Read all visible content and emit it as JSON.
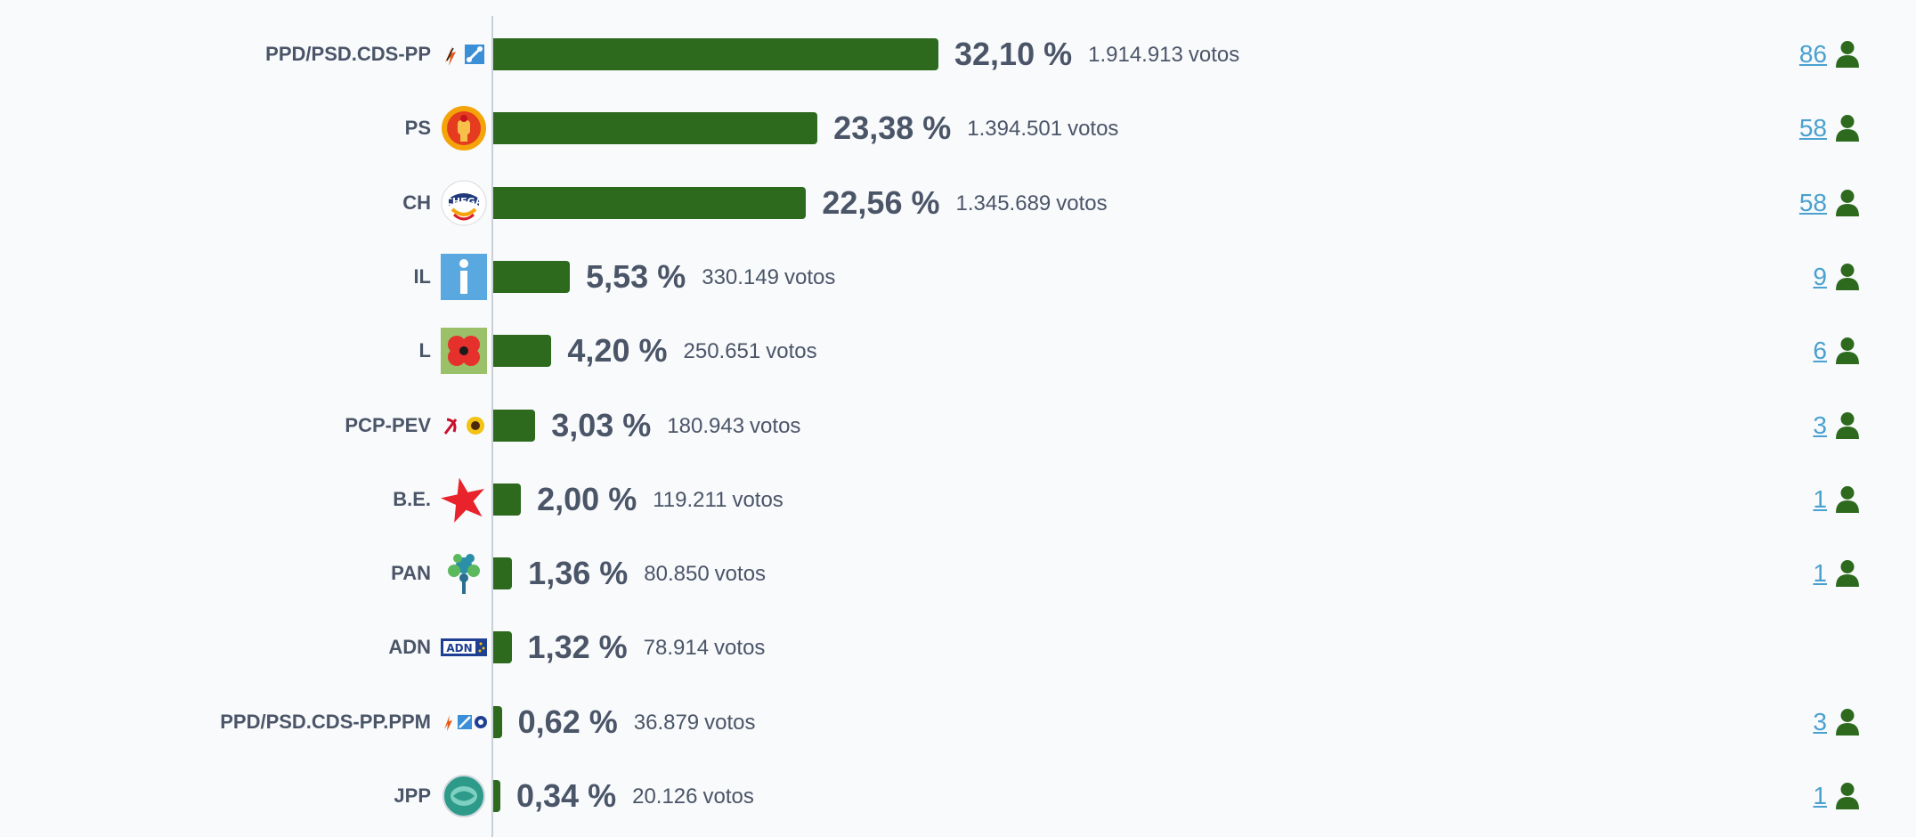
{
  "colors": {
    "bar": "#2d6a1e",
    "text": "#4b5568",
    "link": "#4aa0cf",
    "seat_icon": "#2d6a1e"
  },
  "chart_data": {
    "type": "bar",
    "orientation": "horizontal",
    "value_unit": "%",
    "votes_unit": "votos",
    "xlim": [
      0,
      32.1
    ],
    "categories": [
      "PPD/PSD.CDS-PP",
      "PS",
      "CH",
      "IL",
      "L",
      "PCP-PEV",
      "B.E.",
      "PAN",
      "ADN",
      "PPD/PSD.CDS-PP.PPM",
      "JPP"
    ],
    "values": [
      32.1,
      23.38,
      22.56,
      5.53,
      4.2,
      3.03,
      2.0,
      1.36,
      1.32,
      0.62,
      0.34
    ],
    "values_label": [
      "32,10",
      "23,38",
      "22,56",
      "5,53",
      "4,20",
      "3,03",
      "2,00",
      "1,36",
      "1,32",
      "0,62",
      "0,34"
    ],
    "votes": [
      "1.914.913",
      "1.394.501",
      "1.345.689",
      "330.149",
      "250.651",
      "180.943",
      "119.211",
      "80.850",
      "78.914",
      "36.879",
      "20.126"
    ],
    "seats": [
      "86",
      "58",
      "58",
      "9",
      "6",
      "3",
      "1",
      "1",
      "",
      "3",
      "1"
    ],
    "logos": [
      "psd-cds-logo",
      "ps-fist-rose-logo",
      "chega-logo",
      "il-logo",
      "livre-poppy-logo",
      "pcp-pev-logo",
      "be-star-logo",
      "pan-tree-logo",
      "adn-logo",
      "psd-cds-ppm-logo",
      "jpp-logo"
    ]
  }
}
